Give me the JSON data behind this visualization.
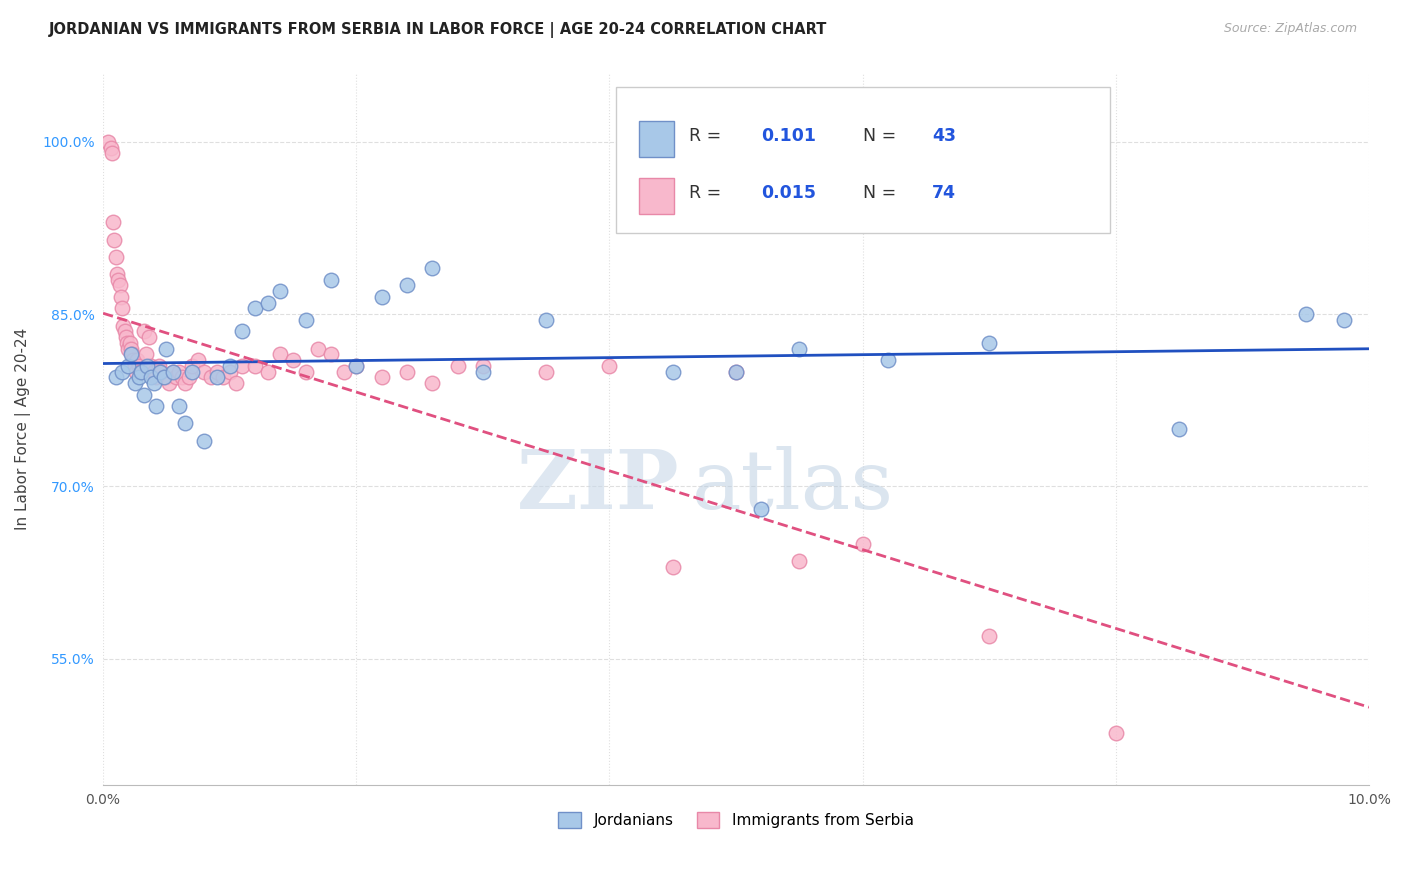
{
  "title": "JORDANIAN VS IMMIGRANTS FROM SERBIA IN LABOR FORCE | AGE 20-24 CORRELATION CHART",
  "source": "Source: ZipAtlas.com",
  "ylabel": "In Labor Force | Age 20-24",
  "x_min": 0.0,
  "x_max": 10.0,
  "y_min": 44.0,
  "y_max": 106.0,
  "y_ticks": [
    55.0,
    70.0,
    85.0,
    100.0
  ],
  "x_ticks": [
    0.0,
    2.0,
    4.0,
    6.0,
    8.0,
    10.0
  ],
  "r_jordanians": 0.101,
  "n_jordanians": 43,
  "r_serbia": 0.015,
  "n_serbia": 74,
  "blue_scatter": "#a8c8e8",
  "pink_scatter": "#f8b8cc",
  "blue_edge": "#7090c8",
  "pink_edge": "#e888a8",
  "trend_blue": "#2050c0",
  "trend_pink": "#e05080",
  "jordanians_x": [
    0.1,
    0.15,
    0.2,
    0.22,
    0.25,
    0.28,
    0.3,
    0.32,
    0.35,
    0.38,
    0.4,
    0.42,
    0.45,
    0.48,
    0.5,
    0.55,
    0.6,
    0.65,
    0.7,
    0.8,
    0.9,
    1.0,
    1.1,
    1.2,
    1.3,
    1.4,
    1.6,
    1.8,
    2.0,
    2.2,
    2.4,
    2.6,
    3.0,
    3.5,
    4.5,
    5.0,
    5.2,
    5.5,
    6.2,
    7.0,
    8.5,
    9.5,
    9.8
  ],
  "jordanians_y": [
    79.5,
    80.0,
    80.5,
    81.5,
    79.0,
    79.5,
    80.0,
    78.0,
    80.5,
    79.5,
    79.0,
    77.0,
    80.0,
    79.5,
    82.0,
    80.0,
    77.0,
    75.5,
    80.0,
    74.0,
    79.5,
    80.5,
    83.5,
    85.5,
    86.0,
    87.0,
    84.5,
    88.0,
    80.5,
    86.5,
    87.5,
    89.0,
    80.0,
    84.5,
    80.0,
    80.0,
    68.0,
    82.0,
    81.0,
    82.5,
    75.0,
    85.0,
    84.5
  ],
  "serbia_x": [
    0.04,
    0.06,
    0.07,
    0.08,
    0.09,
    0.1,
    0.11,
    0.12,
    0.13,
    0.14,
    0.15,
    0.16,
    0.17,
    0.18,
    0.19,
    0.2,
    0.21,
    0.22,
    0.23,
    0.24,
    0.25,
    0.26,
    0.27,
    0.28,
    0.29,
    0.3,
    0.32,
    0.34,
    0.36,
    0.38,
    0.4,
    0.42,
    0.44,
    0.46,
    0.48,
    0.5,
    0.52,
    0.55,
    0.58,
    0.6,
    0.62,
    0.65,
    0.68,
    0.7,
    0.75,
    0.8,
    0.85,
    0.9,
    0.95,
    1.0,
    1.05,
    1.1,
    1.2,
    1.3,
    1.4,
    1.5,
    1.6,
    1.7,
    1.8,
    1.9,
    2.0,
    2.2,
    2.4,
    2.6,
    2.8,
    3.0,
    3.5,
    4.0,
    4.5,
    5.0,
    5.5,
    6.0,
    7.0,
    8.0
  ],
  "serbia_y": [
    100.0,
    99.5,
    99.0,
    93.0,
    91.5,
    90.0,
    88.5,
    88.0,
    87.5,
    86.5,
    85.5,
    84.0,
    83.5,
    83.0,
    82.5,
    82.0,
    82.5,
    82.0,
    81.5,
    81.0,
    80.5,
    80.0,
    81.0,
    80.5,
    80.0,
    80.0,
    83.5,
    81.5,
    83.0,
    80.5,
    80.0,
    79.5,
    80.5,
    80.0,
    79.5,
    79.5,
    79.0,
    80.0,
    79.5,
    80.0,
    79.5,
    79.0,
    79.5,
    80.5,
    81.0,
    80.0,
    79.5,
    80.0,
    79.5,
    80.0,
    79.0,
    80.5,
    80.5,
    80.0,
    81.5,
    81.0,
    80.0,
    82.0,
    81.5,
    80.0,
    80.5,
    79.5,
    80.0,
    79.0,
    80.5,
    80.5,
    80.0,
    80.5,
    63.0,
    80.0,
    63.5,
    65.0,
    57.0,
    48.5
  ],
  "watermark_zip": "ZIP",
  "watermark_atlas": "atlas",
  "bg_color": "#ffffff",
  "grid_color": "#d8d8d8",
  "title_fontsize": 10.5,
  "source_fontsize": 9,
  "axis_label_fontsize": 11,
  "tick_fontsize": 10,
  "scatter_size": 110,
  "trend_lw": 2.0
}
